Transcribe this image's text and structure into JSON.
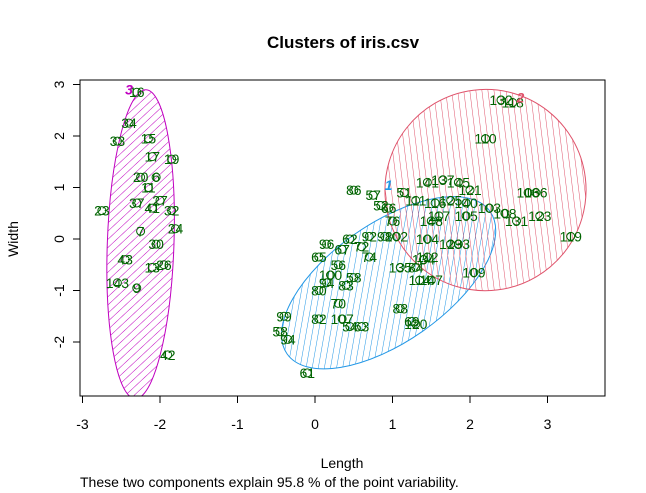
{
  "chart_data": {
    "type": "scatter",
    "title": "Clusters of iris.csv",
    "xlabel": "Length",
    "ylabel": "Width",
    "subtitle": "These two components explain 95.8 % of the point variability.",
    "xlim": [
      -3,
      3.5
    ],
    "ylim": [
      -3,
      3
    ],
    "xticks": [
      -3,
      -2,
      -1,
      0,
      1,
      2,
      3
    ],
    "yticks": [
      -2,
      -1,
      0,
      1,
      2,
      3
    ],
    "grid": false,
    "colors": {
      "cluster1": "#2297E6",
      "cluster2": "#DF536B",
      "cluster3": "#C000C0",
      "points": "#006400"
    },
    "clusters": [
      {
        "label": "1",
        "center": [
          0.95,
          1.05
        ],
        "color": "#2297E6",
        "ellipse": {
          "cx": 0.95,
          "cy": -0.85,
          "rx": 1.6,
          "ry": 1.15,
          "angle": 35
        }
      },
      {
        "label": "2",
        "center": [
          2.65,
          2.75
        ],
        "color": "#DF536B",
        "ellipse": {
          "cx": 2.2,
          "cy": 0.95,
          "rx": 1.3,
          "ry": 1.95,
          "angle": 52
        }
      },
      {
        "label": "3",
        "center": [
          -2.4,
          2.9
        ],
        "color": "#C000C0",
        "ellipse": {
          "cx": -2.25,
          "cy": -0.1,
          "rx": 0.43,
          "ry": 3.0,
          "angle": -2
        }
      }
    ],
    "points": [
      {
        "label": "16",
        "x": -2.3,
        "y": 2.85
      },
      {
        "label": "34",
        "x": -2.4,
        "y": 2.25
      },
      {
        "label": "15",
        "x": -2.15,
        "y": 1.95
      },
      {
        "label": "33",
        "x": -2.55,
        "y": 1.9
      },
      {
        "label": "17",
        "x": -2.1,
        "y": 1.6
      },
      {
        "label": "19",
        "x": -1.85,
        "y": 1.55
      },
      {
        "label": "20",
        "x": -2.25,
        "y": 1.2
      },
      {
        "label": "6",
        "x": -2.05,
        "y": 1.2
      },
      {
        "label": "11",
        "x": -2.15,
        "y": 1.0
      },
      {
        "label": "23",
        "x": -2.75,
        "y": 0.55
      },
      {
        "label": "37",
        "x": -2.3,
        "y": 0.7
      },
      {
        "label": "27",
        "x": -2.0,
        "y": 0.75
      },
      {
        "label": "41",
        "x": -2.1,
        "y": 0.6
      },
      {
        "label": "32",
        "x": -1.85,
        "y": 0.55
      },
      {
        "label": "24",
        "x": -1.8,
        "y": 0.2
      },
      {
        "label": "7",
        "x": -2.25,
        "y": 0.15
      },
      {
        "label": "30",
        "x": -2.05,
        "y": -0.1
      },
      {
        "label": "43",
        "x": -2.45,
        "y": -0.4
      },
      {
        "label": "26",
        "x": -1.95,
        "y": -0.5
      },
      {
        "label": "13",
        "x": -2.1,
        "y": -0.55
      },
      {
        "label": "143",
        "x": -2.55,
        "y": -0.85
      },
      {
        "label": "9",
        "x": -2.3,
        "y": -0.95
      },
      {
        "label": "42",
        "x": -1.9,
        "y": -2.25
      },
      {
        "label": "86",
        "x": 0.5,
        "y": 0.95
      },
      {
        "label": "57",
        "x": 0.75,
        "y": 0.85
      },
      {
        "label": "51",
        "x": 1.15,
        "y": 0.9
      },
      {
        "label": "52",
        "x": 0.85,
        "y": 0.65
      },
      {
        "label": "66",
        "x": 0.95,
        "y": 0.6
      },
      {
        "label": "76",
        "x": 1.0,
        "y": 0.35
      },
      {
        "label": "141",
        "x": 1.45,
        "y": 1.1
      },
      {
        "label": "137",
        "x": 1.65,
        "y": 1.15
      },
      {
        "label": "145",
        "x": 1.85,
        "y": 1.1
      },
      {
        "label": "121",
        "x": 2.0,
        "y": 0.95
      },
      {
        "label": "111",
        "x": 1.3,
        "y": 0.75
      },
      {
        "label": "116",
        "x": 1.55,
        "y": 0.7
      },
      {
        "label": "125",
        "x": 1.75,
        "y": 0.75
      },
      {
        "label": "140",
        "x": 1.95,
        "y": 0.7
      },
      {
        "label": "103",
        "x": 2.25,
        "y": 0.6
      },
      {
        "label": "108",
        "x": 2.45,
        "y": 0.5
      },
      {
        "label": "131",
        "x": 2.6,
        "y": 0.35
      },
      {
        "label": "106",
        "x": 2.75,
        "y": 0.9
      },
      {
        "label": "136",
        "x": 2.85,
        "y": 0.9
      },
      {
        "label": "123",
        "x": 2.9,
        "y": 0.45
      },
      {
        "label": "110",
        "x": 2.2,
        "y": 1.95
      },
      {
        "label": "132",
        "x": 2.4,
        "y": 2.7
      },
      {
        "label": "118",
        "x": 2.55,
        "y": 2.65
      },
      {
        "label": "148",
        "x": 1.5,
        "y": 0.35
      },
      {
        "label": "117",
        "x": 1.6,
        "y": 0.45
      },
      {
        "label": "105",
        "x": 1.95,
        "y": 0.45
      },
      {
        "label": "119",
        "x": 3.3,
        "y": 0.05
      },
      {
        "label": "104",
        "x": 1.45,
        "y": 0.0
      },
      {
        "label": "129",
        "x": 1.75,
        "y": -0.1
      },
      {
        "label": "133",
        "x": 1.85,
        "y": -0.1
      },
      {
        "label": "112",
        "x": 1.45,
        "y": -0.35
      },
      {
        "label": "109",
        "x": 2.05,
        "y": -0.65
      },
      {
        "label": "147",
        "x": 1.5,
        "y": -0.8
      },
      {
        "label": "96",
        "x": 0.15,
        "y": -0.1
      },
      {
        "label": "62",
        "x": 0.45,
        "y": 0.0
      },
      {
        "label": "92",
        "x": 0.7,
        "y": 0.05
      },
      {
        "label": "98",
        "x": 0.9,
        "y": 0.05
      },
      {
        "label": "102",
        "x": 1.05,
        "y": 0.05
      },
      {
        "label": "67",
        "x": 0.35,
        "y": -0.2
      },
      {
        "label": "72",
        "x": 0.6,
        "y": -0.15
      },
      {
        "label": "65",
        "x": 0.05,
        "y": -0.35
      },
      {
        "label": "74",
        "x": 0.7,
        "y": -0.35
      },
      {
        "label": "56",
        "x": 0.3,
        "y": -0.5
      },
      {
        "label": "100",
        "x": 0.2,
        "y": -0.7
      },
      {
        "label": "94",
        "x": 0.15,
        "y": -0.85
      },
      {
        "label": "58",
        "x": 0.5,
        "y": -0.75
      },
      {
        "label": "83",
        "x": 0.4,
        "y": -0.9
      },
      {
        "label": "80",
        "x": 0.05,
        "y": -1.0
      },
      {
        "label": "70",
        "x": 0.3,
        "y": -1.25
      },
      {
        "label": "107",
        "x": 0.35,
        "y": -1.55
      },
      {
        "label": "99",
        "x": -0.4,
        "y": -1.5
      },
      {
        "label": "82",
        "x": 0.05,
        "y": -1.55
      },
      {
        "label": "54",
        "x": 0.45,
        "y": -1.7
      },
      {
        "label": "63",
        "x": 0.6,
        "y": -1.7
      },
      {
        "label": "88",
        "x": 1.1,
        "y": -1.35
      },
      {
        "label": "69",
        "x": 1.25,
        "y": -1.6
      },
      {
        "label": "120",
        "x": 1.3,
        "y": -1.65
      },
      {
        "label": "58",
        "x": -0.45,
        "y": -1.8
      },
      {
        "label": "94",
        "x": -0.35,
        "y": -1.95
      },
      {
        "label": "61",
        "x": -0.1,
        "y": -2.6
      },
      {
        "label": "135",
        "x": 1.1,
        "y": -0.55
      },
      {
        "label": "84",
        "x": 1.3,
        "y": -0.55
      },
      {
        "label": "114",
        "x": 1.35,
        "y": -0.8
      },
      {
        "label": "134",
        "x": 1.4,
        "y": -0.4
      }
    ]
  }
}
